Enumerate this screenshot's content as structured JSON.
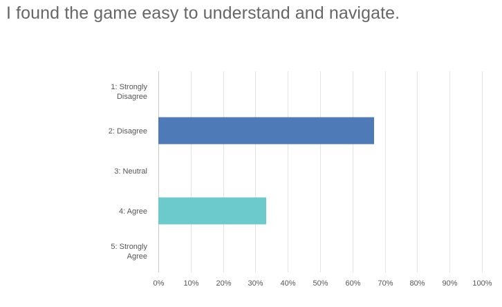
{
  "question": {
    "title": "I found the game easy to understand and navigate."
  },
  "colors": {
    "gridline": "#e3e3e3",
    "axis": "#cccccc",
    "label": "#555555",
    "title": "#666666"
  },
  "chart_data": {
    "type": "bar",
    "orientation": "horizontal",
    "title": "I found the game easy to understand and navigate.",
    "xlabel": "",
    "ylabel": "",
    "categories": [
      [
        "1: Strongly",
        "Disagree"
      ],
      [
        "2: Disagree"
      ],
      [
        "3: Neutral"
      ],
      [
        "4: Agree"
      ],
      [
        "5: Strongly",
        "Agree"
      ]
    ],
    "values": [
      0,
      66.67,
      0,
      33.33,
      0
    ],
    "bar_colors": [
      "#4f7ab8",
      "#4f7ab8",
      "#6ccacc",
      "#6ccacc",
      "#4f7ab8"
    ],
    "xlim": [
      0,
      100
    ],
    "xticks": [
      "0%",
      "10%",
      "20%",
      "30%",
      "40%",
      "50%",
      "60%",
      "70%",
      "80%",
      "90%",
      "100%"
    ],
    "grid": true,
    "legend": "none"
  }
}
